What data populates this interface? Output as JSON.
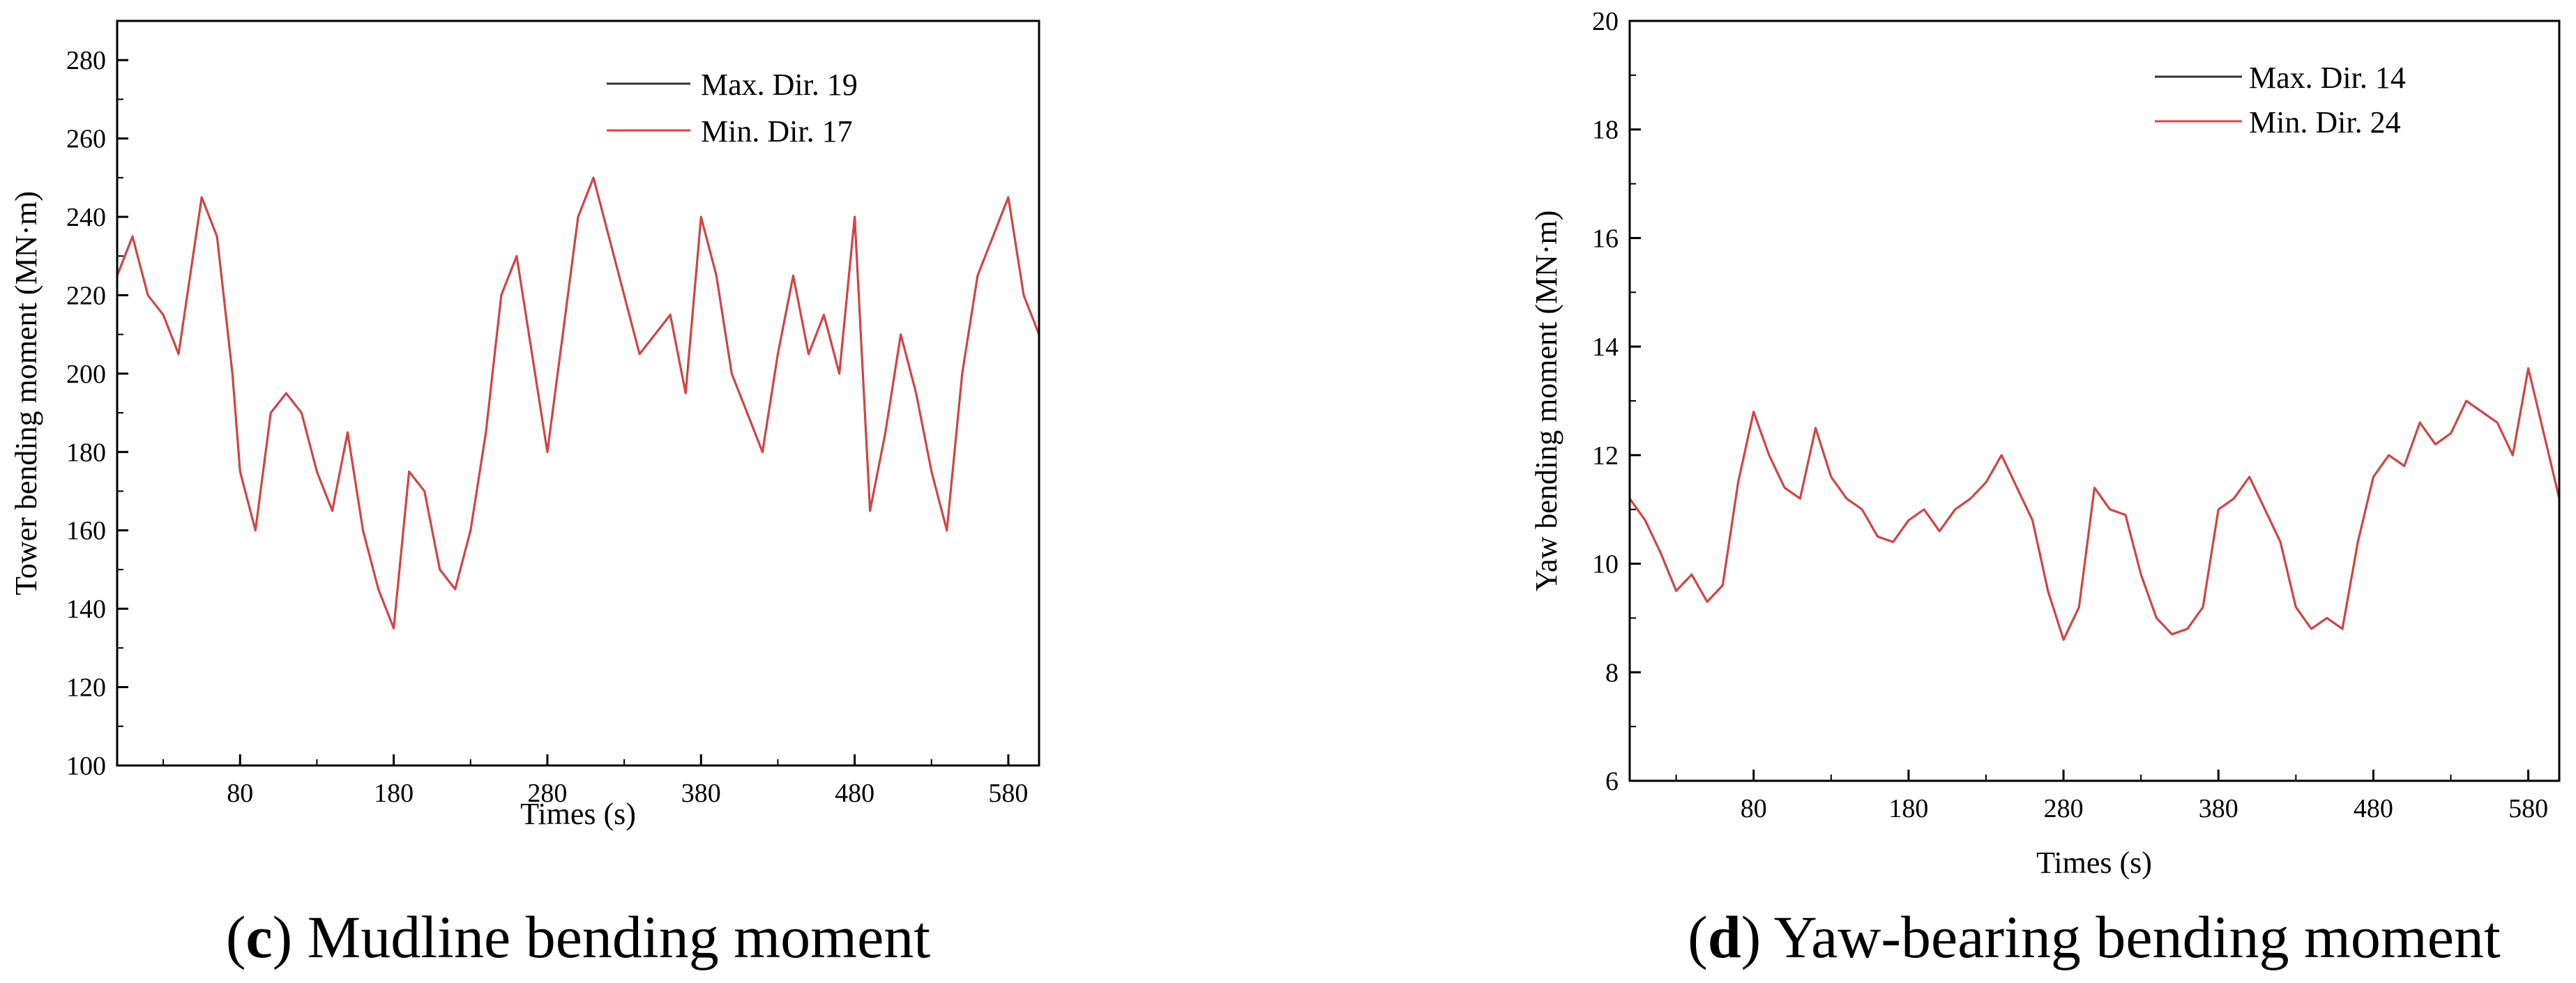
{
  "chart_data": [
    {
      "type": "line",
      "panel": "c",
      "caption_letter": "c",
      "caption_rest": " Mudline bending moment",
      "xlabel": "Times (s)",
      "ylabel": "Tower bending moment (MN·m)",
      "xlim": [
        0,
        600
      ],
      "ylim": [
        100,
        290
      ],
      "xticks": [
        80,
        180,
        280,
        380,
        480,
        580
      ],
      "yticks": [
        100,
        120,
        140,
        160,
        180,
        200,
        220,
        240,
        260,
        280
      ],
      "legend_position": "top-right",
      "series": [
        {
          "name": "Max. Dir. 19",
          "color": "#333333",
          "x": [
            0,
            10,
            20,
            30,
            40,
            55,
            65,
            75,
            80,
            90,
            100,
            110,
            120,
            130,
            140,
            150,
            160,
            170,
            180,
            190,
            200,
            210,
            220,
            230,
            240,
            250,
            260,
            270,
            280,
            290,
            300,
            310,
            320,
            330,
            340,
            350,
            360,
            370,
            380,
            390,
            400,
            410,
            420,
            430,
            440,
            450,
            460,
            470,
            480,
            490,
            500,
            510,
            520,
            530,
            540,
            550,
            560,
            570,
            580,
            590,
            600
          ],
          "y": [
            225,
            235,
            220,
            215,
            205,
            245,
            235,
            200,
            175,
            160,
            190,
            195,
            190,
            175,
            165,
            185,
            160,
            145,
            135,
            175,
            170,
            150,
            145,
            160,
            185,
            220,
            230,
            205,
            180,
            210,
            240,
            250,
            235,
            220,
            205,
            210,
            215,
            195,
            240,
            225,
            200,
            190,
            180,
            205,
            225,
            205,
            215,
            200,
            240,
            165,
            185,
            210,
            195,
            175,
            160,
            200,
            225,
            235,
            245,
            220,
            210
          ]
        },
        {
          "name": "Min. Dir. 17",
          "color": "#ee3b3b",
          "x": [
            0,
            10,
            20,
            30,
            40,
            55,
            65,
            75,
            80,
            90,
            100,
            110,
            120,
            130,
            140,
            150,
            160,
            170,
            180,
            190,
            200,
            210,
            220,
            230,
            240,
            250,
            260,
            270,
            280,
            290,
            300,
            310,
            320,
            330,
            340,
            350,
            360,
            370,
            380,
            390,
            400,
            410,
            420,
            430,
            440,
            450,
            460,
            470,
            480,
            490,
            500,
            510,
            520,
            530,
            540,
            550,
            560,
            570,
            580,
            590,
            600
          ],
          "y": [
            225,
            235,
            220,
            215,
            205,
            245,
            235,
            200,
            175,
            160,
            190,
            195,
            190,
            175,
            165,
            185,
            160,
            145,
            135,
            175,
            170,
            150,
            145,
            160,
            185,
            220,
            230,
            205,
            180,
            210,
            240,
            250,
            235,
            220,
            205,
            210,
            215,
            195,
            240,
            225,
            200,
            190,
            180,
            205,
            225,
            205,
            215,
            200,
            240,
            165,
            185,
            210,
            195,
            175,
            160,
            200,
            225,
            235,
            245,
            220,
            210
          ]
        }
      ]
    },
    {
      "type": "line",
      "panel": "d",
      "caption_letter": "d",
      "caption_rest": " Yaw-bearing bending moment",
      "xlabel": "Times (s)",
      "ylabel": "Yaw bending moment (MN·m)",
      "xlim": [
        0,
        600
      ],
      "ylim": [
        6,
        20
      ],
      "xticks": [
        80,
        180,
        280,
        380,
        480,
        580
      ],
      "yticks": [
        6,
        8,
        10,
        12,
        14,
        16,
        18,
        20
      ],
      "legend_position": "top-right",
      "series": [
        {
          "name": "Max. Dir. 14",
          "color": "#333333",
          "x": [
            0,
            10,
            20,
            30,
            40,
            50,
            60,
            70,
            80,
            90,
            100,
            110,
            120,
            130,
            140,
            150,
            160,
            170,
            180,
            190,
            200,
            210,
            220,
            230,
            240,
            250,
            260,
            270,
            280,
            290,
            300,
            310,
            320,
            330,
            340,
            350,
            360,
            370,
            380,
            390,
            400,
            410,
            420,
            430,
            440,
            450,
            460,
            470,
            480,
            490,
            500,
            510,
            520,
            530,
            540,
            550,
            560,
            570,
            580,
            590,
            600
          ],
          "y": [
            11.2,
            10.8,
            10.2,
            9.5,
            9.8,
            9.3,
            9.6,
            11.5,
            12.8,
            12.0,
            11.4,
            11.2,
            12.5,
            11.6,
            11.2,
            11.0,
            10.5,
            10.4,
            10.8,
            11.0,
            10.6,
            11.0,
            11.2,
            11.5,
            12.0,
            11.4,
            10.8,
            9.5,
            8.6,
            9.2,
            11.4,
            11.0,
            10.9,
            9.8,
            9.0,
            8.7,
            8.8,
            9.2,
            11.0,
            11.2,
            11.6,
            11.0,
            10.4,
            9.2,
            8.8,
            9.0,
            8.8,
            10.4,
            11.6,
            12.0,
            11.8,
            12.6,
            12.2,
            12.4,
            13.0,
            12.8,
            12.6,
            12.0,
            13.6,
            12.4,
            11.2
          ]
        },
        {
          "name": "Min. Dir. 24",
          "color": "#ee3b3b",
          "x": [
            0,
            10,
            20,
            30,
            40,
            50,
            60,
            70,
            80,
            90,
            100,
            110,
            120,
            130,
            140,
            150,
            160,
            170,
            180,
            190,
            200,
            210,
            220,
            230,
            240,
            250,
            260,
            270,
            280,
            290,
            300,
            310,
            320,
            330,
            340,
            350,
            360,
            370,
            380,
            390,
            400,
            410,
            420,
            430,
            440,
            450,
            460,
            470,
            480,
            490,
            500,
            510,
            520,
            530,
            540,
            550,
            560,
            570,
            580,
            590,
            600
          ],
          "y": [
            11.2,
            10.8,
            10.2,
            9.5,
            9.8,
            9.3,
            9.6,
            11.5,
            12.8,
            12.0,
            11.4,
            11.2,
            12.5,
            11.6,
            11.2,
            11.0,
            10.5,
            10.4,
            10.8,
            11.0,
            10.6,
            11.0,
            11.2,
            11.5,
            12.0,
            11.4,
            10.8,
            9.5,
            8.6,
            9.2,
            11.4,
            11.0,
            10.9,
            9.8,
            9.0,
            8.7,
            8.8,
            9.2,
            11.0,
            11.2,
            11.6,
            11.0,
            10.4,
            9.2,
            8.8,
            9.0,
            8.8,
            10.4,
            11.6,
            12.0,
            11.8,
            12.6,
            12.2,
            12.4,
            13.0,
            12.8,
            12.6,
            12.0,
            13.6,
            12.4,
            11.2
          ]
        }
      ]
    }
  ]
}
